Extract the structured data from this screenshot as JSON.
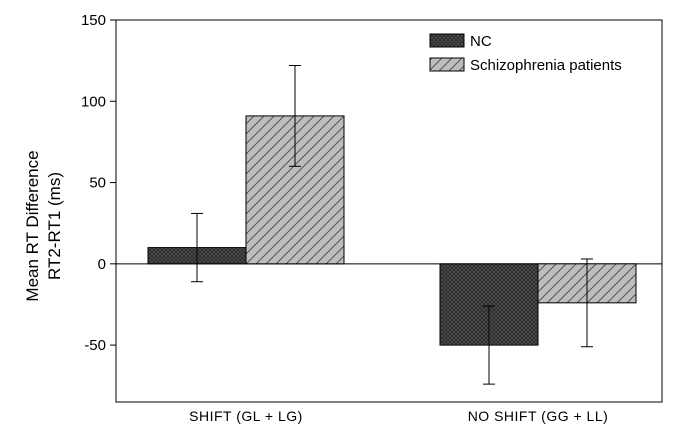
{
  "chart_data": {
    "type": "bar",
    "categories": [
      "SHIFT (GL + LG)",
      "NO SHIFT (GG + LL)"
    ],
    "series": [
      {
        "name": "NC",
        "values": [
          10,
          -50
        ],
        "error": [
          21,
          24
        ],
        "color": "#555555",
        "pattern": "crosshatch"
      },
      {
        "name": "Schizophrenia patients",
        "values": [
          91,
          -24
        ],
        "error": [
          31,
          27
        ],
        "color": "#b8b8b8",
        "pattern": "diagonal"
      }
    ],
    "ylabel_lines": [
      "Mean RT Difference",
      "RT2-RT1 (ms)"
    ],
    "ylim": [
      -85,
      150
    ],
    "yticks": [
      -50,
      0,
      50,
      100,
      150
    ],
    "grid": false,
    "legend_position": "top-right"
  }
}
